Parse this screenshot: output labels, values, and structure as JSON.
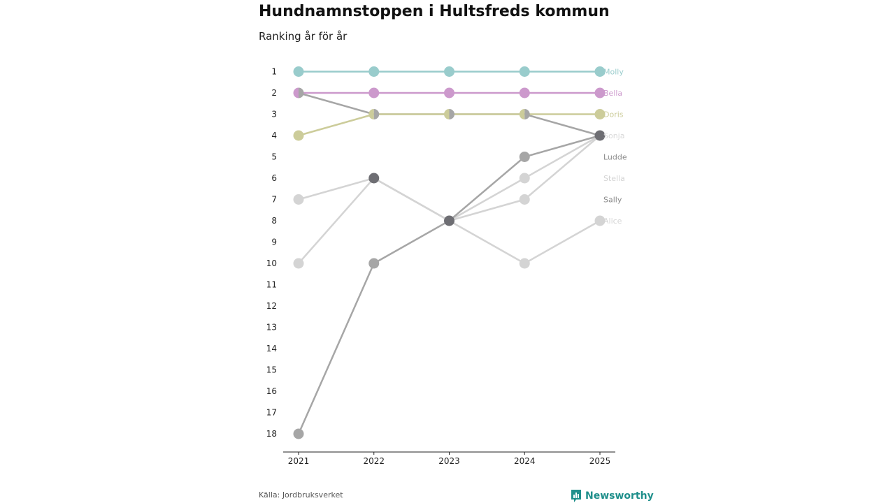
{
  "title": "Hundnamnstoppen i Hultsfreds kommun",
  "subtitle": "Ranking år för år",
  "source": "Källa: Jordbruksverket",
  "brand": {
    "name": "Newsworthy",
    "icon": "newsworthy-logo-icon",
    "color": "#1f8f8b"
  },
  "chart_data": {
    "type": "line",
    "title": "Hundnamnstoppen i Hultsfreds kommun",
    "subtitle": "Ranking år för år",
    "x": [
      "2021",
      "2022",
      "2023",
      "2024",
      "2025"
    ],
    "y_ticks": [
      "1",
      "2",
      "3",
      "4",
      "5",
      "6",
      "7",
      "8",
      "9",
      "10",
      "11",
      "12",
      "13",
      "14",
      "15",
      "16",
      "17",
      "18"
    ],
    "ylim": [
      1,
      18
    ],
    "y_reversed": true,
    "grid": false,
    "legend": "direct labels at right end of lines",
    "series": [
      {
        "name": "Alice",
        "values": [
          7,
          6,
          8,
          10,
          8
        ],
        "color": "#d4d4d4"
      },
      {
        "name": "Stella",
        "values": [
          10,
          6,
          8,
          6,
          4
        ],
        "color": "#d4d4d4"
      },
      {
        "name": "Sally",
        "values": [
          null,
          6,
          8,
          7,
          4
        ],
        "color": "#d4d4d4"
      },
      {
        "name": "Ludde",
        "values": [
          18,
          10,
          8,
          5,
          4
        ],
        "color": "#a6a6a6"
      },
      {
        "name": "Sonja",
        "values": [
          2,
          3,
          3,
          3,
          4
        ],
        "color": "#a6a6a6"
      },
      {
        "name": "Doris",
        "values": [
          4,
          3,
          3,
          3,
          3
        ],
        "color": "#cccc9a"
      },
      {
        "name": "Bella",
        "values": [
          2,
          2,
          2,
          2,
          2
        ],
        "color": "#cc99cc"
      },
      {
        "name": "Molly",
        "values": [
          1,
          1,
          1,
          1,
          1
        ],
        "color": "#99cccc"
      }
    ],
    "end_labels": [
      {
        "name": "Molly",
        "rank": 1,
        "color": "#99cccc"
      },
      {
        "name": "Bella",
        "rank": 2,
        "color": "#cc99cc"
      },
      {
        "name": "Doris",
        "rank": 3,
        "color": "#cccc9a"
      },
      {
        "name": "Sonja",
        "rank": 4,
        "color": "#d9d9d9"
      },
      {
        "name": "Ludde",
        "rank": 5,
        "color": "#8a8a8a"
      },
      {
        "name": "Stella",
        "rank": 6,
        "color": "#d4d4d4"
      },
      {
        "name": "Sally",
        "rank": 7,
        "color": "#8a8a8a"
      },
      {
        "name": "Alice",
        "rank": 8,
        "color": "#d4d4d4"
      }
    ],
    "overlap_point_color": "#6e6e73"
  }
}
